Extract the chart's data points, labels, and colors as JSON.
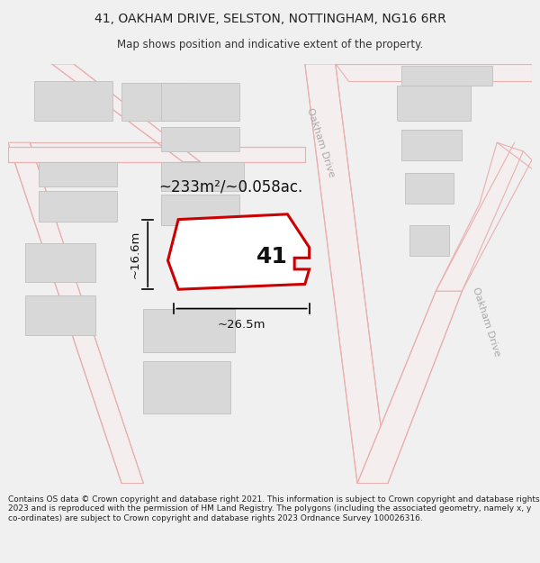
{
  "title_line1": "41, OAKHAM DRIVE, SELSTON, NOTTINGHAM, NG16 6RR",
  "title_line2": "Map shows position and indicative extent of the property.",
  "footer_text": "Contains OS data © Crown copyright and database right 2021. This information is subject to Crown copyright and database rights 2023 and is reproduced with the permission of HM Land Registry. The polygons (including the associated geometry, namely x, y co-ordinates) are subject to Crown copyright and database rights 2023 Ordnance Survey 100026316.",
  "bg_color": "#f0f0f0",
  "map_bg": "#f7f7f7",
  "road_color": "#e8b0b0",
  "road_fill": "#f9f0f0",
  "building_fill": "#d8d8d8",
  "building_edge": "#c0c0c0",
  "property_edge": "#cc0000",
  "property_fill": "#ffffff",
  "property_label": "41",
  "area_text": "~233m²/~0.058ac.",
  "dim_width_text": "~26.5m",
  "dim_height_text": "~16.6m",
  "road_label1": "Oakham Drive",
  "road_label2": "Oakham Drive",
  "title_fontsize": 10,
  "subtitle_fontsize": 8.5,
  "footer_fontsize": 6.5
}
